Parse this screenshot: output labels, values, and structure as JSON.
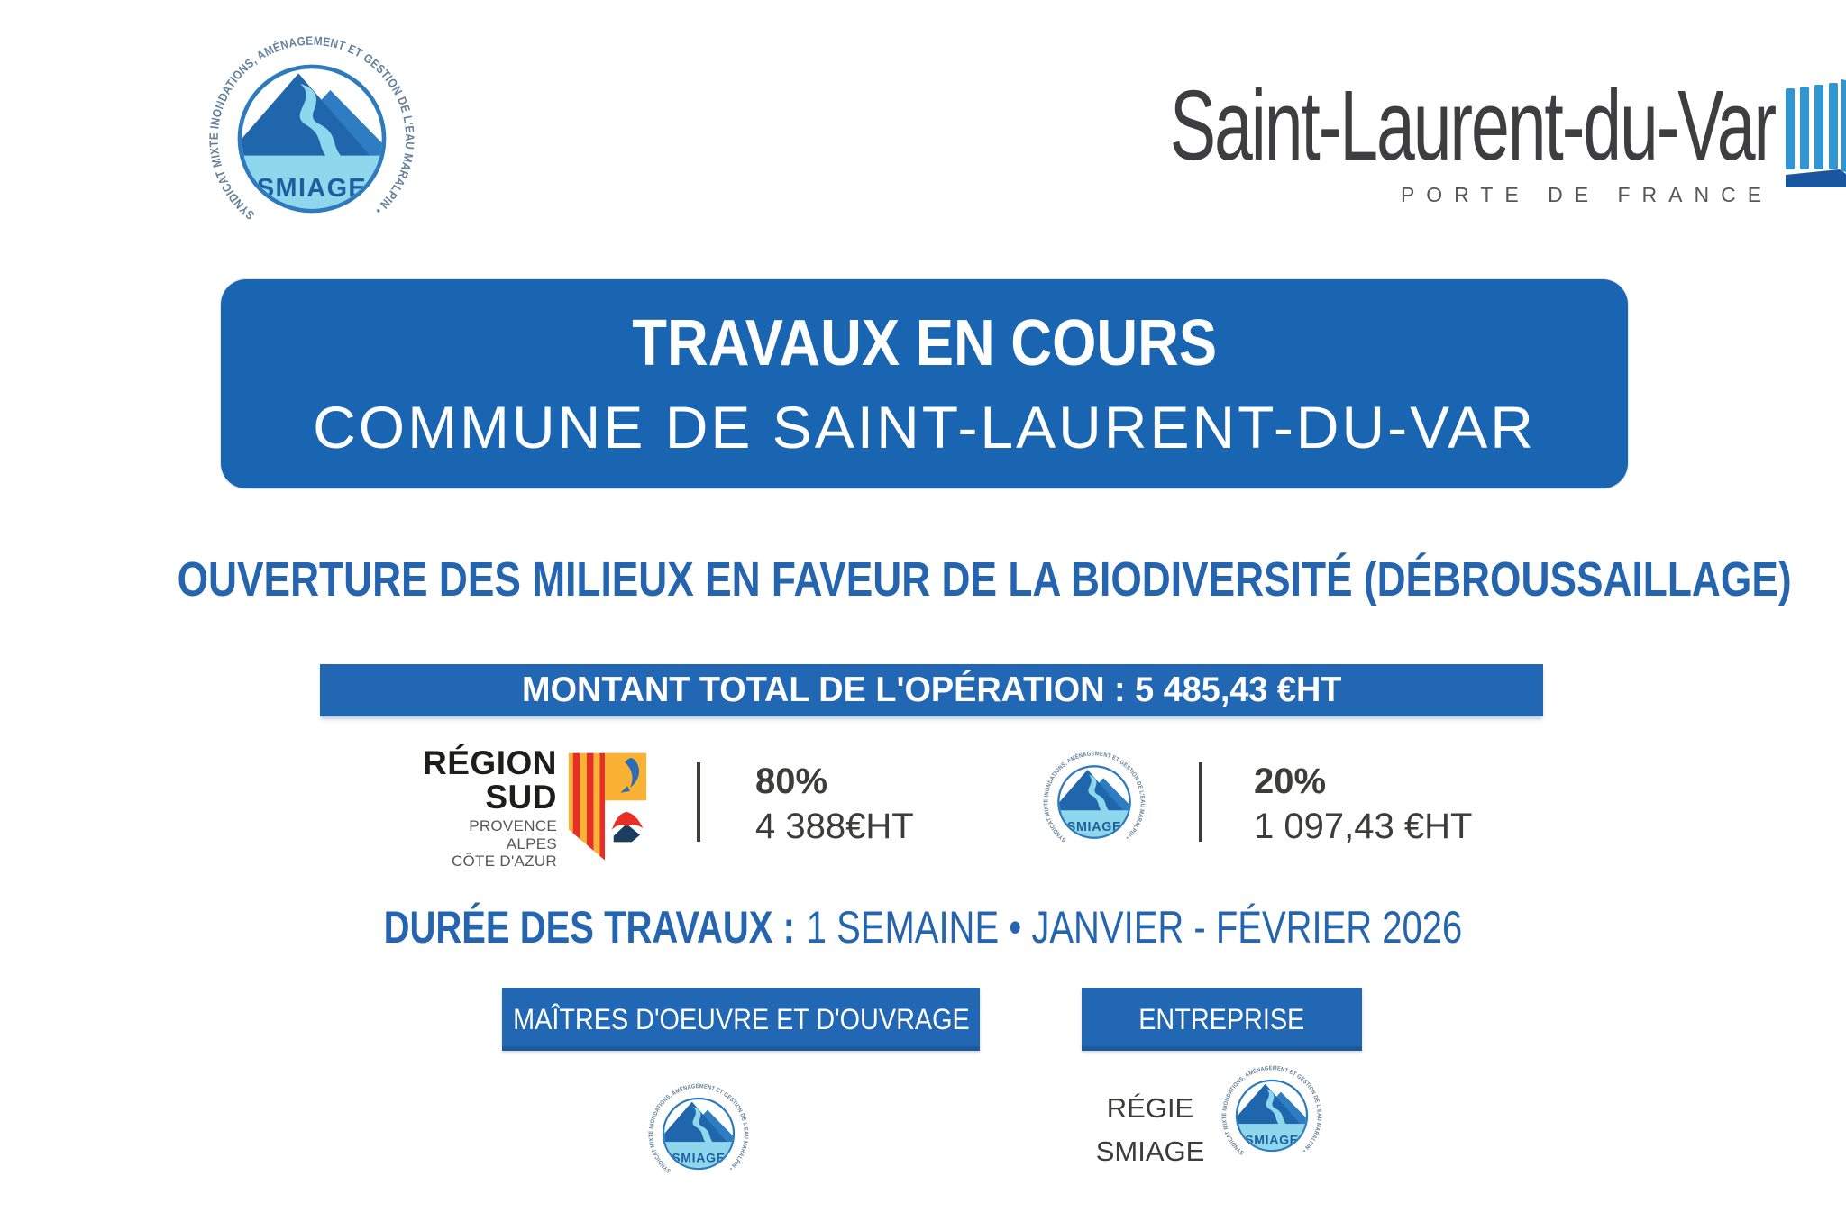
{
  "colors": {
    "primary_blue": "#1a65b2",
    "bar_blue": "#2267b4",
    "text_blue": "#2565af",
    "dark_text": "#3c3c3b",
    "gray_text": "#575756",
    "smiage_light_blue": "#8fd7ec",
    "smiage_dark_blue": "#1f66ad",
    "region_orange": "#f9b233",
    "region_red": "#e63027"
  },
  "logos": {
    "smiage": {
      "name": "SMIAGE",
      "ring_text": "SYNDICAT MIXTE INONDATIONS, AMÉNAGEMENT ET GESTION DE L'EAU MARALPIN •"
    },
    "city": {
      "title": "Saint-Laurent-du-Var",
      "tagline": "PORTE DE FRANCE"
    },
    "region_sud": {
      "line1": "RÉGION",
      "line2": "SUD",
      "sub1": "PROVENCE",
      "sub2": "ALPES",
      "sub3": "CÔTE D'AZUR"
    }
  },
  "banner": {
    "line1": "TRAVAUX EN COURS",
    "line2": "COMMUNE DE SAINT-LAURENT-DU-VAR"
  },
  "project_title": "OUVERTURE DES MILIEUX EN FAVEUR DE LA BIODIVERSITÉ (DÉBROUSSAILLAGE)",
  "total_amount": "MONTANT TOTAL DE L'OPÉRATION : 5 485,43 €HT",
  "financing": {
    "items": [
      {
        "funder": "Région Sud",
        "percent": "80%",
        "amount": "4 388€HT"
      },
      {
        "funder": "SMIAGE",
        "percent": "20%",
        "amount": "1 097,43 €HT"
      }
    ]
  },
  "duration": {
    "label": "DURÉE DES TRAVAUX :",
    "value": "1 SEMAINE • JANVIER - FÉVRIER 2026"
  },
  "sections": {
    "maitres": "MAÎTRES D'OEUVRE ET D'OUVRAGE",
    "entreprise": "ENTREPRISE"
  },
  "entreprise": {
    "name_line1": "RÉGIE",
    "name_line2": "SMIAGE"
  }
}
